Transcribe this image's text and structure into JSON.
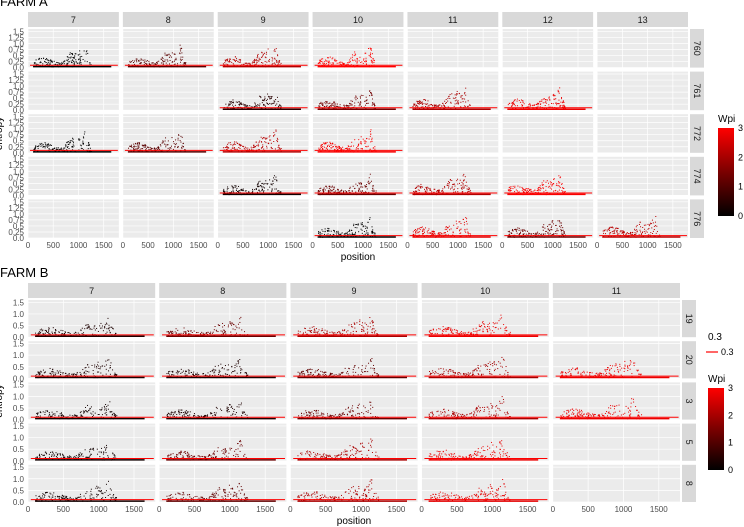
{
  "chart_data": [
    {
      "type": "scatter",
      "title": "FARM A",
      "xlabel": "position",
      "ylabel": "entropy",
      "xlim": [
        0,
        1800
      ],
      "ylim": [
        0,
        1.6
      ],
      "x_ticks": [
        0,
        500,
        1000,
        1500
      ],
      "x_tick_labels": [
        "0",
        "500",
        "1000",
        "1500"
      ],
      "y_ticks": [
        0.0,
        0.25,
        0.5,
        0.75,
        1.0,
        1.25,
        1.5
      ],
      "y_tick_labels": [
        "0.0",
        "0.25",
        "0.5",
        "0.75",
        "1.0",
        "1.25",
        "1.5"
      ],
      "threshold_line": 0.1,
      "col_facets": [
        "7",
        "8",
        "9",
        "10",
        "11",
        "12",
        "13"
      ],
      "row_facets": [
        "760",
        "761",
        "772",
        "774",
        "776"
      ],
      "panels": [
        {
          "row": "760",
          "col": "7",
          "wpi": 0.0
        },
        {
          "row": "760",
          "col": "8",
          "wpi": 0.8
        },
        {
          "row": "760",
          "col": "9",
          "wpi": 1.9
        },
        {
          "row": "760",
          "col": "10",
          "wpi": 3.0
        },
        {
          "row": "761",
          "col": "9",
          "wpi": 0.3
        },
        {
          "row": "761",
          "col": "10",
          "wpi": 1.1
        },
        {
          "row": "761",
          "col": "11",
          "wpi": 1.8
        },
        {
          "row": "761",
          "col": "12",
          "wpi": 2.7
        },
        {
          "row": "772",
          "col": "7",
          "wpi": 0.0
        },
        {
          "row": "772",
          "col": "8",
          "wpi": 0.8
        },
        {
          "row": "772",
          "col": "9",
          "wpi": 2.0
        },
        {
          "row": "772",
          "col": "10",
          "wpi": 2.9
        },
        {
          "row": "774",
          "col": "9",
          "wpi": 0.1
        },
        {
          "row": "774",
          "col": "10",
          "wpi": 1.0
        },
        {
          "row": "774",
          "col": "11",
          "wpi": 1.9
        },
        {
          "row": "774",
          "col": "12",
          "wpi": 2.9
        },
        {
          "row": "776",
          "col": "10",
          "wpi": 0.0
        },
        {
          "row": "776",
          "col": "11",
          "wpi": 2.6
        },
        {
          "row": "776",
          "col": "12",
          "wpi": 1.0
        },
        {
          "row": "776",
          "col": "13",
          "wpi": 2.0
        }
      ],
      "legend": {
        "title": "Wpi",
        "min": 0,
        "max": 3,
        "ticks": [
          "0",
          "1",
          "2",
          "3"
        ],
        "low_color": "#000000",
        "high_color": "#ff0000",
        "placement": "right"
      }
    },
    {
      "type": "scatter",
      "title": "FARM B",
      "xlabel": "position",
      "ylabel": "entropy",
      "xlim": [
        0,
        1800
      ],
      "ylim": [
        0,
        1.6
      ],
      "x_ticks": [
        0,
        500,
        1000,
        1500
      ],
      "x_tick_labels": [
        "0",
        "500",
        "1000",
        "1500"
      ],
      "y_ticks": [
        0.0,
        0.5,
        1.0,
        1.5
      ],
      "y_tick_labels": [
        "0.0",
        "0.5",
        "1.0",
        "1.5"
      ],
      "threshold_line": 0.1,
      "col_facets": [
        "7",
        "8",
        "9",
        "10",
        "11"
      ],
      "row_facets": [
        "19",
        "20",
        "3",
        "5",
        "8"
      ],
      "panels": [
        {
          "row": "19",
          "col": "7",
          "wpi": 0.2
        },
        {
          "row": "19",
          "col": "8",
          "wpi": 1.0
        },
        {
          "row": "19",
          "col": "9",
          "wpi": 1.8
        },
        {
          "row": "19",
          "col": "10",
          "wpi": 2.7
        },
        {
          "row": "20",
          "col": "7",
          "wpi": 0.2
        },
        {
          "row": "20",
          "col": "8",
          "wpi": 0.2
        },
        {
          "row": "20",
          "col": "9",
          "wpi": 0.9
        },
        {
          "row": "20",
          "col": "10",
          "wpi": 1.7
        },
        {
          "row": "20",
          "col": "11",
          "wpi": 2.7
        },
        {
          "row": "3",
          "col": "7",
          "wpi": 0.1
        },
        {
          "row": "3",
          "col": "8",
          "wpi": 0.2
        },
        {
          "row": "3",
          "col": "9",
          "wpi": 1.0
        },
        {
          "row": "3",
          "col": "10",
          "wpi": 1.8
        },
        {
          "row": "3",
          "col": "11",
          "wpi": 2.7
        },
        {
          "row": "5",
          "col": "7",
          "wpi": 0.1
        },
        {
          "row": "5",
          "col": "8",
          "wpi": 1.0
        },
        {
          "row": "5",
          "col": "9",
          "wpi": 1.8
        },
        {
          "row": "5",
          "col": "10",
          "wpi": 2.7
        },
        {
          "row": "8",
          "col": "7",
          "wpi": 0.1
        },
        {
          "row": "8",
          "col": "8",
          "wpi": 0.9
        },
        {
          "row": "8",
          "col": "9",
          "wpi": 1.8
        },
        {
          "row": "8",
          "col": "10",
          "wpi": 2.6
        }
      ],
      "line_legend": {
        "title": "0.3",
        "label": "0.3",
        "color": "#ff0000",
        "placement": "right"
      },
      "legend": {
        "title": "Wpi",
        "min": 0,
        "max": 3,
        "ticks": [
          "0",
          "1",
          "2",
          "3"
        ],
        "low_color": "#000000",
        "high_color": "#ff0000",
        "placement": "right"
      }
    }
  ]
}
